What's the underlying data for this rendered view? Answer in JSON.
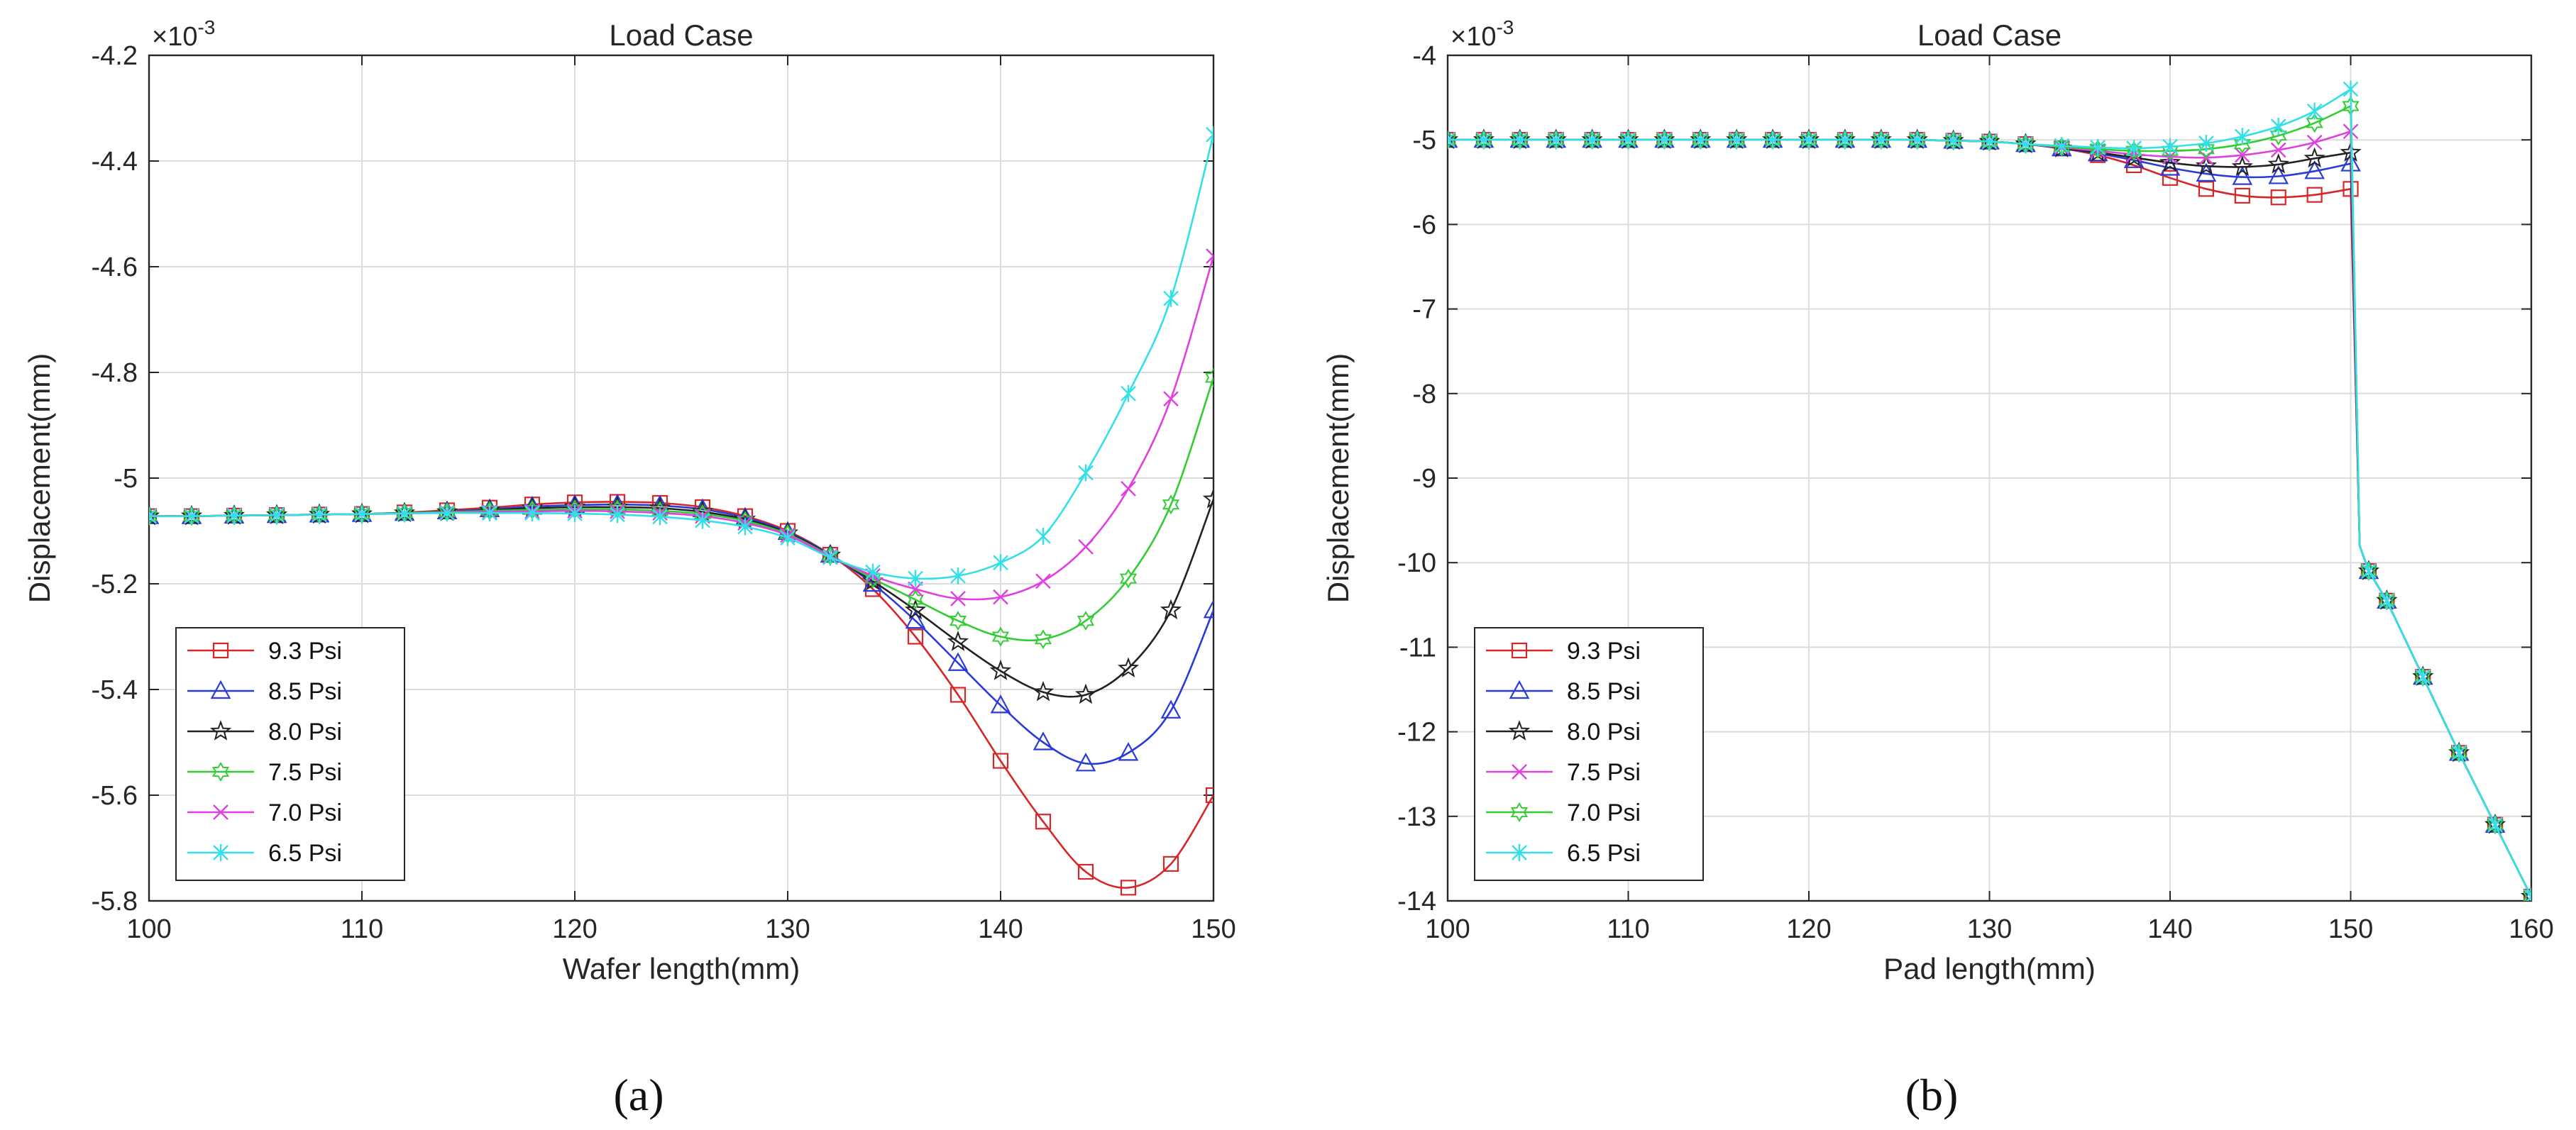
{
  "figure": {
    "panels": [
      "(a)",
      "(b)"
    ]
  },
  "chart_data": [
    {
      "type": "line",
      "panel": "(a)",
      "title": "Load Case",
      "xlabel": "Wafer length(mm)",
      "ylabel": "Displacement(mm)",
      "y_exponent": "-3",
      "xlim": [
        100,
        150
      ],
      "ylim": [
        -5.8,
        -4.2
      ],
      "xticks": [
        100,
        110,
        120,
        130,
        140,
        150
      ],
      "yticks": [
        -5.8,
        -5.6,
        -5.4,
        -5.2,
        -5.0,
        -4.8,
        -4.6,
        -4.4,
        -4.2
      ],
      "ytick_labels": [
        "-5.8",
        "-5.6",
        "-5.4",
        "-5.2",
        "-5",
        "-4.8",
        "-4.6",
        "-4.4",
        "-4.2"
      ],
      "grid": true,
      "legend_position": "bottom-left",
      "x": [
        100,
        102,
        104,
        106,
        108,
        110,
        112,
        114,
        116,
        118,
        120,
        122,
        124,
        126,
        128,
        130,
        132,
        134,
        136,
        138,
        140,
        142,
        144,
        146,
        148,
        150
      ],
      "series": [
        {
          "name": "9.3 Psi",
          "color": "#d62728",
          "marker": "square",
          "values": [
            -5.072,
            -5.072,
            -5.071,
            -5.07,
            -5.069,
            -5.068,
            -5.065,
            -5.061,
            -5.056,
            -5.05,
            -5.046,
            -5.045,
            -5.047,
            -5.055,
            -5.072,
            -5.1,
            -5.145,
            -5.21,
            -5.3,
            -5.41,
            -5.535,
            -5.65,
            -5.745,
            -5.775,
            -5.73,
            -5.6
          ]
        },
        {
          "name": "8.5 Psi",
          "color": "#2a3bd8",
          "marker": "triangle",
          "values": [
            -5.072,
            -5.072,
            -5.071,
            -5.07,
            -5.069,
            -5.068,
            -5.066,
            -5.063,
            -5.059,
            -5.054,
            -5.051,
            -5.05,
            -5.052,
            -5.059,
            -5.075,
            -5.102,
            -5.145,
            -5.2,
            -5.27,
            -5.35,
            -5.43,
            -5.5,
            -5.54,
            -5.52,
            -5.44,
            -5.25
          ]
        },
        {
          "name": "8.0 Psi",
          "color": "#222222",
          "marker": "star",
          "values": [
            -5.072,
            -5.072,
            -5.071,
            -5.07,
            -5.069,
            -5.068,
            -5.066,
            -5.064,
            -5.061,
            -5.057,
            -5.055,
            -5.055,
            -5.057,
            -5.064,
            -5.078,
            -5.104,
            -5.146,
            -5.195,
            -5.25,
            -5.31,
            -5.365,
            -5.405,
            -5.41,
            -5.36,
            -5.25,
            -5.04
          ]
        },
        {
          "name": "7.5 Psi",
          "color": "#33cc33",
          "marker": "hexagram",
          "values": [
            -5.072,
            -5.072,
            -5.071,
            -5.07,
            -5.069,
            -5.068,
            -5.066,
            -5.064,
            -5.062,
            -5.06,
            -5.059,
            -5.059,
            -5.062,
            -5.068,
            -5.081,
            -5.106,
            -5.147,
            -5.19,
            -5.23,
            -5.27,
            -5.3,
            -5.305,
            -5.27,
            -5.19,
            -5.05,
            -4.81
          ]
        },
        {
          "name": "7.0 Psi",
          "color": "#e040e0",
          "marker": "x",
          "values": [
            -5.072,
            -5.072,
            -5.071,
            -5.07,
            -5.069,
            -5.068,
            -5.067,
            -5.065,
            -5.064,
            -5.063,
            -5.062,
            -5.063,
            -5.066,
            -5.072,
            -5.085,
            -5.108,
            -5.148,
            -5.185,
            -5.21,
            -5.228,
            -5.225,
            -5.195,
            -5.13,
            -5.02,
            -4.85,
            -4.58
          ]
        },
        {
          "name": "6.5 Psi",
          "color": "#33e0e8",
          "marker": "asterisk",
          "values": [
            -5.072,
            -5.072,
            -5.071,
            -5.07,
            -5.069,
            -5.068,
            -5.067,
            -5.066,
            -5.066,
            -5.066,
            -5.067,
            -5.069,
            -5.073,
            -5.08,
            -5.092,
            -5.113,
            -5.15,
            -5.178,
            -5.19,
            -5.185,
            -5.16,
            -5.11,
            -4.99,
            -4.84,
            -4.66,
            -4.35
          ]
        }
      ]
    },
    {
      "type": "line",
      "panel": "(b)",
      "title": "Load Case",
      "xlabel": "Pad length(mm)",
      "ylabel": "Displacement(mm)",
      "y_exponent": "-3",
      "xlim": [
        100,
        160
      ],
      "ylim": [
        -14,
        -4
      ],
      "xticks": [
        100,
        110,
        120,
        130,
        140,
        150,
        160
      ],
      "yticks": [
        -14,
        -13,
        -12,
        -11,
        -10,
        -9,
        -8,
        -7,
        -6,
        -5,
        -4
      ],
      "ytick_labels": [
        "-14",
        "-13",
        "-12",
        "-11",
        "-10",
        "-9",
        "-8",
        "-7",
        "-6",
        "-5",
        "-4"
      ],
      "grid": true,
      "legend_position": "bottom-left",
      "x": [
        100,
        102,
        104,
        106,
        108,
        110,
        112,
        114,
        116,
        118,
        120,
        122,
        124,
        126,
        128,
        130,
        132,
        134,
        136,
        138,
        140,
        142,
        144,
        146,
        148,
        150
      ],
      "tail_x": [
        150.5,
        151,
        152,
        154,
        156,
        158,
        160
      ],
      "tail_values": [
        -9.8,
        -10.1,
        -10.45,
        -11.35,
        -12.25,
        -13.1,
        -13.95
      ],
      "series": [
        {
          "name": "9.3 Psi",
          "color": "#d62728",
          "marker": "square",
          "values": [
            -5.0,
            -5.0,
            -5.0,
            -5.0,
            -5.0,
            -5.0,
            -5.0,
            -5.0,
            -5.0,
            -5.0,
            -5.0,
            -5.0,
            -5.0,
            -5.0,
            -5.01,
            -5.02,
            -5.05,
            -5.1,
            -5.18,
            -5.3,
            -5.45,
            -5.58,
            -5.66,
            -5.68,
            -5.65,
            -5.58
          ]
        },
        {
          "name": "8.5 Psi",
          "color": "#2a3bd8",
          "marker": "triangle",
          "values": [
            -5.0,
            -5.0,
            -5.0,
            -5.0,
            -5.0,
            -5.0,
            -5.0,
            -5.0,
            -5.0,
            -5.0,
            -5.0,
            -5.0,
            -5.0,
            -5.0,
            -5.01,
            -5.02,
            -5.05,
            -5.1,
            -5.16,
            -5.24,
            -5.33,
            -5.4,
            -5.44,
            -5.43,
            -5.37,
            -5.28
          ]
        },
        {
          "name": "8.0 Psi",
          "color": "#222222",
          "marker": "star",
          "values": [
            -5.0,
            -5.0,
            -5.0,
            -5.0,
            -5.0,
            -5.0,
            -5.0,
            -5.0,
            -5.0,
            -5.0,
            -5.0,
            -5.0,
            -5.0,
            -5.0,
            -5.01,
            -5.02,
            -5.05,
            -5.1,
            -5.15,
            -5.21,
            -5.27,
            -5.31,
            -5.32,
            -5.29,
            -5.22,
            -5.15
          ]
        },
        {
          "name": "7.5 Psi",
          "color": "#e040e0",
          "marker": "x",
          "values": [
            -5.0,
            -5.0,
            -5.0,
            -5.0,
            -5.0,
            -5.0,
            -5.0,
            -5.0,
            -5.0,
            -5.0,
            -5.0,
            -5.0,
            -5.0,
            -5.0,
            -5.01,
            -5.02,
            -5.05,
            -5.09,
            -5.13,
            -5.17,
            -5.2,
            -5.21,
            -5.18,
            -5.12,
            -5.03,
            -4.9
          ]
        },
        {
          "name": "7.0 Psi",
          "color": "#33cc33",
          "marker": "hexagram",
          "values": [
            -5.0,
            -5.0,
            -5.0,
            -5.0,
            -5.0,
            -5.0,
            -5.0,
            -5.0,
            -5.0,
            -5.0,
            -5.0,
            -5.0,
            -5.0,
            -5.0,
            -5.01,
            -5.02,
            -5.05,
            -5.08,
            -5.11,
            -5.13,
            -5.13,
            -5.11,
            -5.05,
            -4.95,
            -4.8,
            -4.6
          ]
        },
        {
          "name": "6.5 Psi",
          "color": "#33e0e8",
          "marker": "asterisk",
          "values": [
            -5.0,
            -5.0,
            -5.0,
            -5.0,
            -5.0,
            -5.0,
            -5.0,
            -5.0,
            -5.0,
            -5.0,
            -5.0,
            -5.0,
            -5.0,
            -5.0,
            -5.01,
            -5.02,
            -5.05,
            -5.07,
            -5.09,
            -5.1,
            -5.08,
            -5.04,
            -4.96,
            -4.84,
            -4.66,
            -4.4
          ]
        }
      ]
    }
  ]
}
